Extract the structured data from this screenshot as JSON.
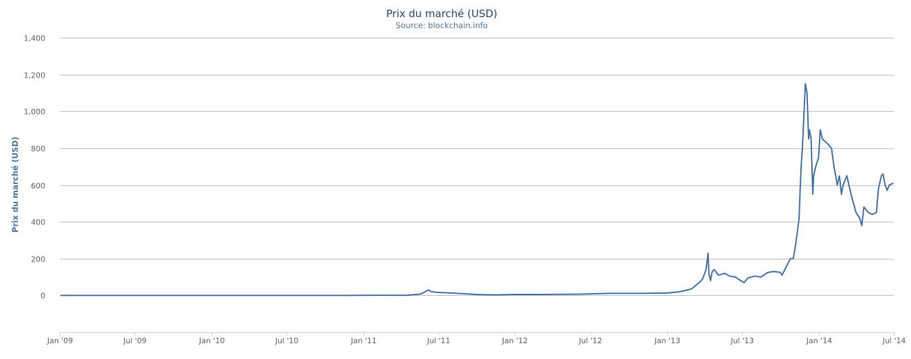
{
  "chart_data": {
    "type": "line",
    "title": "Prix du marché (USD)",
    "subtitle": "Source: blockchain.info",
    "ylabel": "Prix du marché (USD)",
    "xlabel": "",
    "ylim": [
      -200,
      1400
    ],
    "y_ticks": [
      0,
      200,
      400,
      600,
      800,
      1000,
      1200,
      1400
    ],
    "y_tick_labels": [
      "0",
      "200",
      "400",
      "600",
      "800",
      "1,000",
      "1,200",
      "1,400"
    ],
    "x_ticks": [
      "2009-01-01",
      "2009-07-01",
      "2010-01-01",
      "2010-07-01",
      "2011-01-01",
      "2011-07-01",
      "2012-01-01",
      "2012-07-01",
      "2013-01-01",
      "2013-07-01",
      "2014-01-01",
      "2014-07-01"
    ],
    "x_tick_labels": [
      "Jan '09",
      "Jul '09",
      "Jan '10",
      "Jul '10",
      "Jan '11",
      "Jul '11",
      "Jan '12",
      "Jul '12",
      "Jan '13",
      "Jul '13",
      "Jan '14",
      "Jul '14"
    ],
    "xlim": [
      "2009-01-01",
      "2014-07-01"
    ],
    "grid": true,
    "legend": "none",
    "colors": {
      "series": "#4572a7",
      "grid": "#c0c0c0",
      "axis": "#c0d0e0"
    },
    "series": [
      {
        "x": [
          "2009-01-03",
          "2010-07-17",
          "2011-01-01",
          "2011-02-10",
          "2011-04-15",
          "2011-05-20",
          "2011-06-08",
          "2011-06-12",
          "2011-06-25",
          "2011-08-01",
          "2011-10-01",
          "2011-11-15",
          "2012-01-01",
          "2012-03-01",
          "2012-06-01",
          "2012-08-15",
          "2012-09-01",
          "2012-11-01",
          "2013-01-01",
          "2013-02-01",
          "2013-03-01",
          "2013-03-20",
          "2013-03-28",
          "2013-04-05",
          "2013-04-10",
          "2013-04-12",
          "2013-04-16",
          "2013-04-20",
          "2013-04-25",
          "2013-05-05",
          "2013-05-20",
          "2013-06-01",
          "2013-06-15",
          "2013-07-01",
          "2013-07-06",
          "2013-07-15",
          "2013-08-01",
          "2013-08-15",
          "2013-09-01",
          "2013-09-15",
          "2013-10-01",
          "2013-10-05",
          "2013-10-15",
          "2013-10-25",
          "2013-11-01",
          "2013-11-05",
          "2013-11-10",
          "2013-11-15",
          "2013-11-18",
          "2013-11-20",
          "2013-11-23",
          "2013-11-28",
          "2013-11-30",
          "2013-12-04",
          "2013-12-06",
          "2013-12-08",
          "2013-12-10",
          "2013-12-14",
          "2013-12-18",
          "2013-12-20",
          "2013-12-25",
          "2014-01-01",
          "2014-01-05",
          "2014-01-10",
          "2014-01-20",
          "2014-02-01",
          "2014-02-07",
          "2014-02-15",
          "2014-02-20",
          "2014-02-25",
          "2014-03-01",
          "2014-03-10",
          "2014-03-20",
          "2014-04-01",
          "2014-04-10",
          "2014-04-15",
          "2014-04-20",
          "2014-05-01",
          "2014-05-10",
          "2014-05-20",
          "2014-05-25",
          "2014-06-01",
          "2014-06-05",
          "2014-06-10",
          "2014-06-15",
          "2014-06-20",
          "2014-06-30"
        ],
        "y": [
          0,
          0.07,
          0.3,
          1,
          0.8,
          8,
          30,
          22,
          17,
          13,
          5,
          3,
          5,
          5,
          6.5,
          11,
          11,
          11,
          13,
          20,
          35,
          70,
          90,
          140,
          230,
          120,
          80,
          130,
          140,
          110,
          120,
          105,
          100,
          75,
          70,
          95,
          105,
          100,
          125,
          130,
          125,
          110,
          155,
          200,
          200,
          250,
          330,
          420,
          600,
          700,
          800,
          1050,
          1150,
          1100,
          980,
          850,
          900,
          850,
          550,
          650,
          700,
          750,
          900,
          850,
          830,
          800,
          700,
          600,
          650,
          550,
          600,
          650,
          550,
          450,
          420,
          380,
          480,
          450,
          440,
          450,
          580,
          650,
          660,
          600,
          570,
          600,
          610
        ]
      }
    ]
  }
}
